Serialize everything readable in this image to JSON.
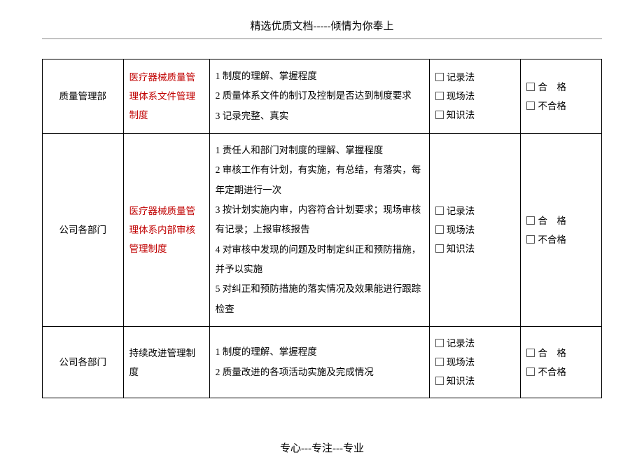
{
  "header": "精选优质文档-----倾情为你奉上",
  "footer": "专心---专注---专业",
  "methods": {
    "m1": "记录法",
    "m2": "现场法",
    "m3": "知识法"
  },
  "results": {
    "r1": "合　格",
    "r2": "不合格"
  },
  "rows": [
    {
      "dept": "质量管理部",
      "doc": "医疗器械质量管理体系文件管理制度",
      "doc_red": true,
      "items": "1 制度的理解、掌握程度\n2 质量体系文件的制订及控制是否达到制度要求\n3 记录完整、真实"
    },
    {
      "dept": "公司各部门",
      "doc": "医疗器械质量管理体系内部审核管理制度",
      "doc_red": true,
      "items": "1 责任人和部门对制度的理解、掌握程度\n2 审核工作有计划，有实施，有总结，有落实，每年定期进行一次\n3 按计划实施内审，内容符合计划要求；现场审核有记录；上报审核报告\n4 对审核中发现的问题及时制定纠正和预防措施，并予以实施\n5 对纠正和预防措施的落实情况及效果能进行跟踪检查"
    },
    {
      "dept": "公司各部门",
      "doc": "持续改进管理制度",
      "doc_red": false,
      "items": "1 制度的理解、掌握程度\n2  质量改进的各项活动实施及完成情况"
    }
  ],
  "table_style": {
    "border_color": "#000000",
    "red_color": "#c00000",
    "font_size": 13.5,
    "line_height": 2.0,
    "background": "#ffffff"
  }
}
